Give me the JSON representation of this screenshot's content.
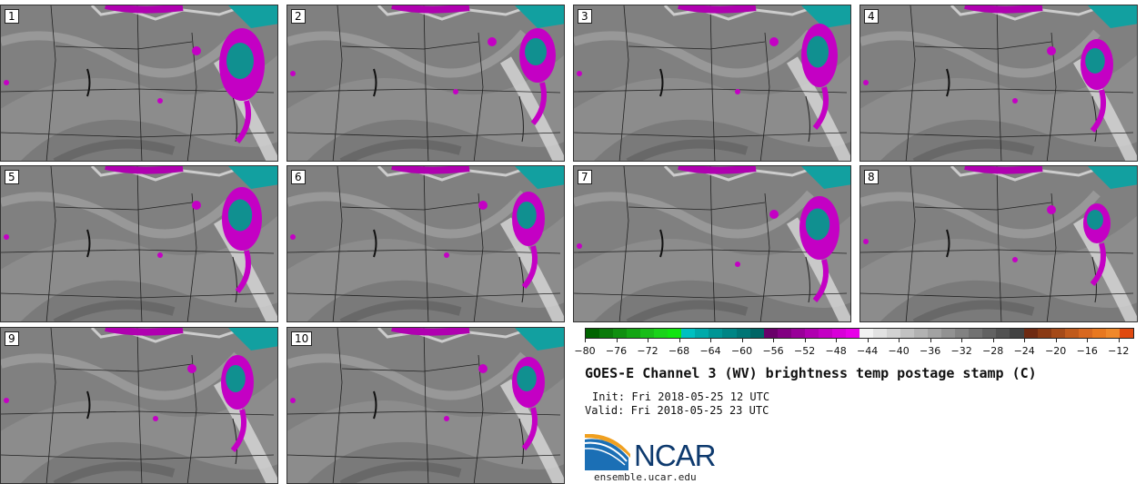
{
  "panels": [
    {
      "number": "1"
    },
    {
      "number": "2"
    },
    {
      "number": "3"
    },
    {
      "number": "4"
    },
    {
      "number": "5"
    },
    {
      "number": "6"
    },
    {
      "number": "7"
    },
    {
      "number": "8"
    },
    {
      "number": "9"
    },
    {
      "number": "10"
    }
  ],
  "colorbar": {
    "tick_labels": [
      "-80",
      "-76",
      "-72",
      "-68",
      "-64",
      "-60",
      "-56",
      "-52",
      "-48",
      "-44",
      "-40",
      "-36",
      "-32",
      "-28",
      "-24",
      "-20",
      "-16",
      "-12"
    ],
    "colors": [
      "#006400",
      "#0a7a0a",
      "#0f8f0f",
      "#13a513",
      "#18bd18",
      "#19d319",
      "#10e410",
      "#00c0c0",
      "#00aaaa",
      "#009595",
      "#008585",
      "#007575",
      "#006666",
      "#6a006a",
      "#820082",
      "#990099",
      "#b000b0",
      "#c400c4",
      "#d800d8",
      "#e800e8",
      "#f2f2f2",
      "#e2e2e2",
      "#d2d2d2",
      "#c2c2c2",
      "#b2b2b2",
      "#a2a2a2",
      "#929292",
      "#828282",
      "#727272",
      "#626262",
      "#525252",
      "#424242",
      "#6e2a12",
      "#8a3a14",
      "#a54a18",
      "#c05a1c",
      "#d86820",
      "#e87820",
      "#f0882a",
      "#e04a10"
    ]
  },
  "title": "GOES-E Channel 3 (WV) brightness temp postage stamp (C)",
  "init": "Init: Fri 2018-05-25 12 UTC",
  "valid": "Valid: Fri 2018-05-25 23 UTC",
  "logo": {
    "text": "NCAR",
    "site": "ensemble.ucar.edu"
  }
}
